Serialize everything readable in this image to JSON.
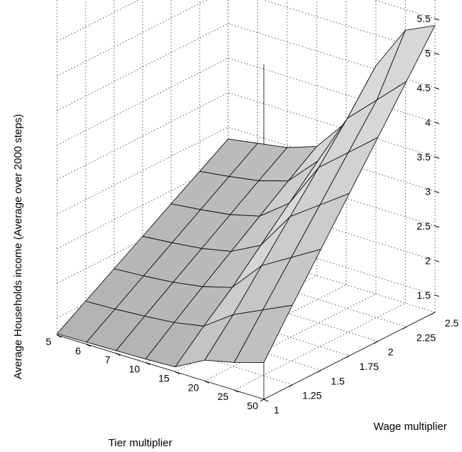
{
  "chart_data": {
    "type": "surface",
    "title": "",
    "xlabel": "Tier multiplier",
    "ylabel": "Wage multiplier",
    "zlabel": "Average Households income (Average over 2000 steps)",
    "x_ticks": [
      "5",
      "6",
      "7",
      "10",
      "15",
      "20",
      "25",
      "50"
    ],
    "y_ticks": [
      "1",
      "1.25",
      "1.5",
      "1.75",
      "2",
      "2.25",
      "2.5"
    ],
    "z_ticks": [
      "1.5",
      "2",
      "2.5",
      "3",
      "3.5",
      "4",
      "4.5",
      "5",
      "5.5"
    ],
    "zlim": [
      1.25,
      6.1
    ],
    "grid": true,
    "surface_color": "#cfcfcf",
    "z_values": [
      [
        1.78,
        2.4,
        3.0,
        3.6,
        4.2,
        4.8,
        5.4
      ],
      [
        1.65,
        2.2,
        2.75,
        3.3,
        3.85,
        4.4,
        5.2
      ],
      [
        1.55,
        2.0,
        2.5,
        3.0,
        3.5,
        4.0,
        4.55
      ],
      [
        1.32,
        1.7,
        2.05,
        2.45,
        2.85,
        3.25,
        3.6
      ],
      [
        1.3,
        1.62,
        1.93,
        2.23,
        2.53,
        2.83,
        3.12
      ],
      [
        1.29,
        1.58,
        1.86,
        2.14,
        2.42,
        2.7,
        2.97
      ],
      [
        1.28,
        1.55,
        1.82,
        2.09,
        2.36,
        2.63,
        2.9
      ],
      [
        1.27,
        1.53,
        1.79,
        2.05,
        2.31,
        2.57,
        2.83
      ]
    ]
  }
}
